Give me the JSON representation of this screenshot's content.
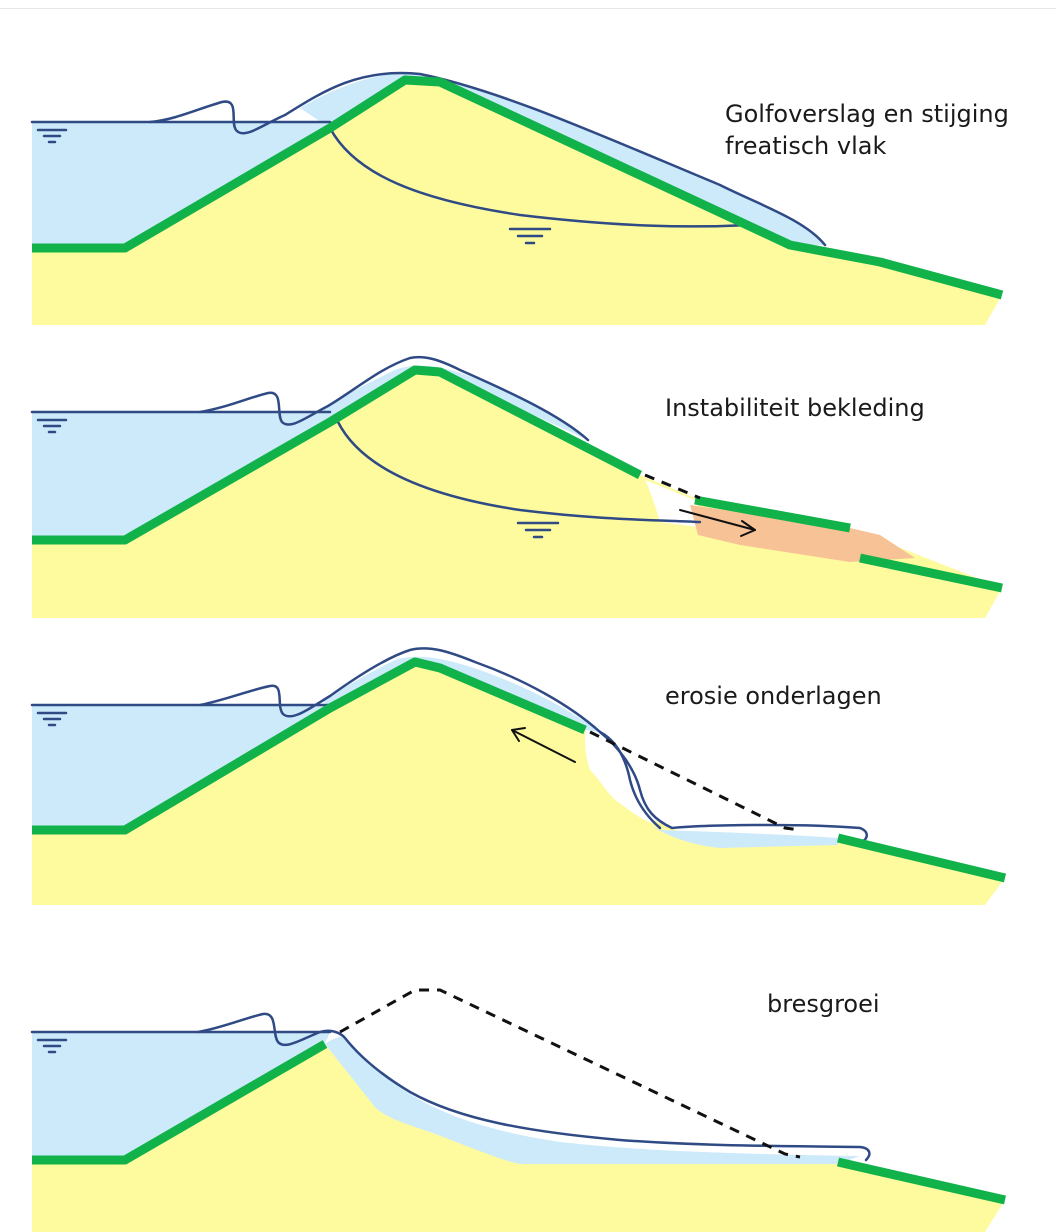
{
  "colors": {
    "water": "#cdeafb",
    "water_line": "#2f4a84",
    "soil": "#fdfb9e",
    "grass": "#11b24a",
    "slide": "#f7c296",
    "dash": "#111111"
  },
  "panels": [
    {
      "caption": "Golfoverslag en stijging\nfreatisch vlak"
    },
    {
      "caption": "Instabiliteit bekleding"
    },
    {
      "caption": "erosie onderlagen"
    },
    {
      "caption": "bresgroei"
    }
  ]
}
